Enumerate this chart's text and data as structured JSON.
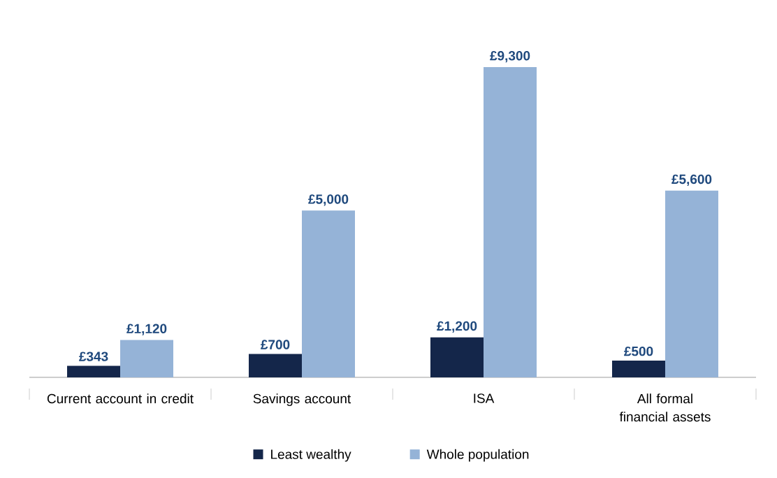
{
  "chart_data": {
    "type": "bar",
    "categories": [
      "Current account in credit",
      "Savings account",
      "ISA",
      "All formal financial assets"
    ],
    "series": [
      {
        "name": "Least wealthy",
        "color": "#14264a",
        "values": [
          343,
          700,
          1200,
          500
        ],
        "value_labels": [
          "£343",
          "£700",
          "£1,200",
          "£500"
        ]
      },
      {
        "name": "Whole population",
        "color": "#95b3d7",
        "values": [
          1120,
          5000,
          9300,
          5600
        ],
        "value_labels": [
          "£1,120",
          "£5,000",
          "£9,300",
          "£5,600"
        ]
      }
    ],
    "legend": "bottom",
    "grid": false
  }
}
